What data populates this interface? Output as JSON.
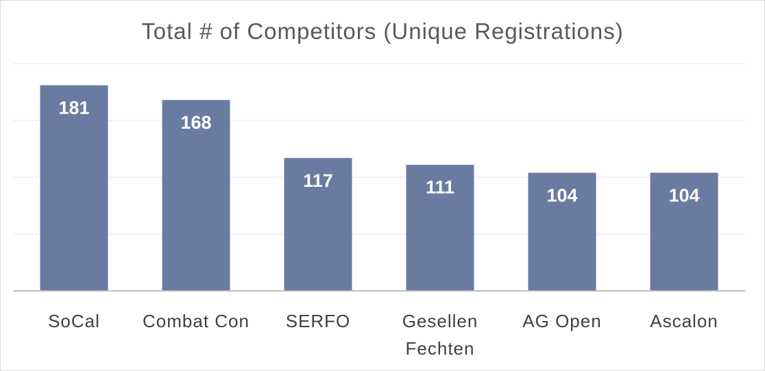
{
  "chart_data": {
    "type": "bar",
    "title": "Total # of Competitors (Unique Registrations)",
    "categories": [
      "SoCal",
      "Combat Con",
      "SERFO",
      "Gesellen Fechten",
      "AG Open",
      "Ascalon"
    ],
    "category_lines": [
      [
        "SoCal"
      ],
      [
        "Combat  Con"
      ],
      [
        "SERFO"
      ],
      [
        "Gesellen",
        "Fechten"
      ],
      [
        "AG Open"
      ],
      [
        "Ascalon"
      ]
    ],
    "values": [
      181,
      168,
      117,
      111,
      104,
      104
    ],
    "data_labels": [
      "181",
      "168",
      "117",
      "111",
      "104",
      "104"
    ],
    "xlabel": "",
    "ylabel": "",
    "ylim": [
      0,
      200
    ],
    "y_gridlines": [
      50,
      100,
      150,
      200
    ],
    "y_tick_labels_shown": false,
    "grid": true,
    "legend": "none",
    "colors": {
      "bar": "#6a7ba2",
      "grid": "#e7e7e7",
      "axis": "#bfbfbf",
      "title": "#595959",
      "category_text": "#404040",
      "value_text": "#ffffff"
    }
  }
}
